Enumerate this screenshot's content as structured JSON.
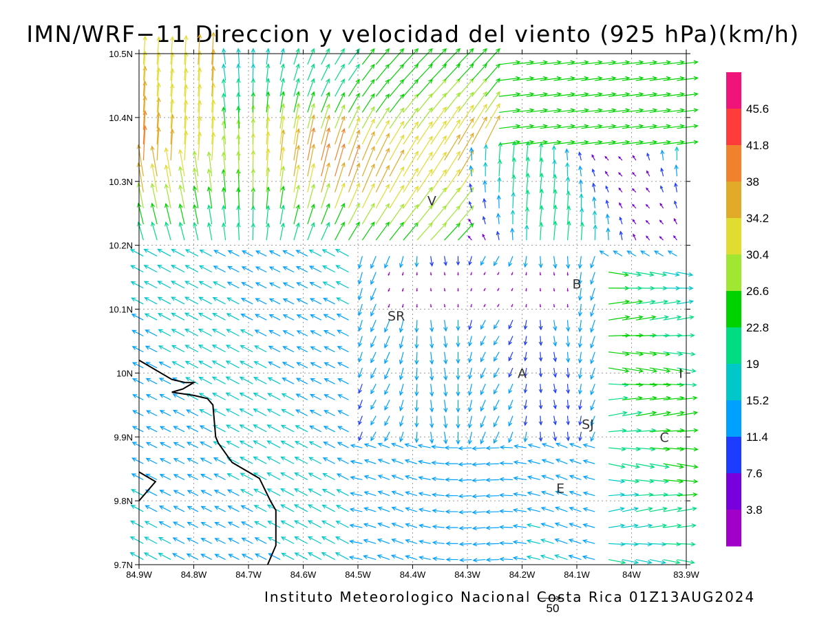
{
  "title": "IMN/WRF−11 Direccion y velocidad del viento (925 hPa)(km/h)",
  "footer": "Instituto Meteorologico Nacional Costa Rica 01Z13AUG2024",
  "reference_vector": {
    "label": "50"
  },
  "map": {
    "lon_range": [
      -84.9,
      -83.9
    ],
    "lat_range": [
      9.7,
      10.5
    ],
    "lat_ticks": [
      {
        "value": 10.5,
        "label": "10.5N"
      },
      {
        "value": 10.4,
        "label": "10.4N"
      },
      {
        "value": 10.3,
        "label": "10.3N"
      },
      {
        "value": 10.2,
        "label": "10.2N"
      },
      {
        "value": 10.1,
        "label": "10.1N"
      },
      {
        "value": 10.0,
        "label": "10N"
      },
      {
        "value": 9.9,
        "label": "9.9N"
      },
      {
        "value": 9.8,
        "label": "9.8N"
      },
      {
        "value": 9.7,
        "label": "9.7N"
      }
    ],
    "lon_ticks": [
      {
        "value": -84.9,
        "label": "84.9W"
      },
      {
        "value": -84.8,
        "label": "84.8W"
      },
      {
        "value": -84.7,
        "label": "84.7W"
      },
      {
        "value": -84.6,
        "label": "84.6W"
      },
      {
        "value": -84.5,
        "label": "84.5W"
      },
      {
        "value": -84.4,
        "label": "84.4W"
      },
      {
        "value": -84.3,
        "label": "84.3W"
      },
      {
        "value": -84.2,
        "label": "84.2W"
      },
      {
        "value": -84.1,
        "label": "84.1W"
      },
      {
        "value": -84.0,
        "label": "84W"
      },
      {
        "value": -83.9,
        "label": "83.9W"
      }
    ],
    "places": [
      {
        "label": "V",
        "lon": -84.365,
        "lat": 10.27
      },
      {
        "label": "B",
        "lon": -84.1,
        "lat": 10.14
      },
      {
        "label": "SR",
        "lon": -84.43,
        "lat": 10.09
      },
      {
        "label": "A",
        "lon": -84.2,
        "lat": 10.0
      },
      {
        "label": "I",
        "lon": -83.91,
        "lat": 10.0
      },
      {
        "label": "SJ",
        "lon": -84.08,
        "lat": 9.92
      },
      {
        "label": "C",
        "lon": -83.94,
        "lat": 9.9
      },
      {
        "label": "E",
        "lon": -84.13,
        "lat": 9.82
      }
    ],
    "coastline": [
      [
        -84.9,
        10.02
      ],
      [
        -84.84,
        9.99
      ],
      [
        -84.815,
        9.985
      ],
      [
        -84.8,
        9.985
      ],
      [
        -84.82,
        9.975
      ],
      [
        -84.84,
        9.97
      ],
      [
        -84.8,
        9.965
      ],
      [
        -84.775,
        9.96
      ],
      [
        -84.765,
        9.95
      ],
      [
        -84.76,
        9.9
      ],
      [
        -84.755,
        9.89
      ],
      [
        -84.73,
        9.86
      ],
      [
        -84.68,
        9.835
      ],
      [
        -84.66,
        9.8
      ],
      [
        -84.65,
        9.785
      ],
      [
        -84.65,
        9.73
      ],
      [
        -84.665,
        9.7
      ]
    ],
    "coastline2": [
      [
        -84.9,
        9.845
      ],
      [
        -84.87,
        9.83
      ],
      [
        -84.9,
        9.8
      ]
    ]
  },
  "colorbar": {
    "levels": [
      "45.6",
      "41.8",
      "38",
      "34.2",
      "30.4",
      "26.6",
      "22.8",
      "19",
      "15.2",
      "11.4",
      "7.6",
      "3.8"
    ],
    "colors": [
      "#f0147a",
      "#ff3c3c",
      "#f0822d",
      "#e1aa28",
      "#e1dc32",
      "#a0e632",
      "#00d200",
      "#00dc82",
      "#00c8c8",
      "#00a0ff",
      "#1e3cff",
      "#7800dc",
      "#a000c8"
    ]
  }
}
